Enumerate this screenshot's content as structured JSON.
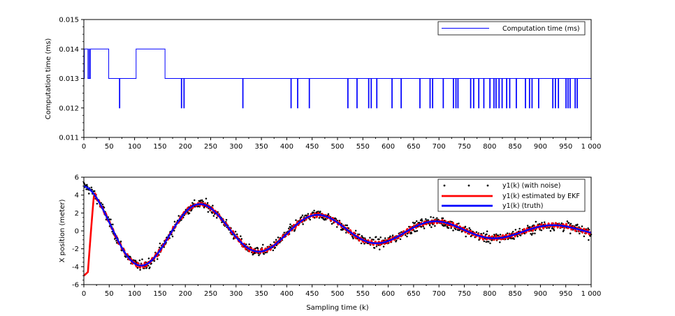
{
  "chart_data": [
    {
      "type": "line",
      "xlabel": "",
      "ylabel": "Computation time (ms)",
      "xlim": [
        0,
        1000
      ],
      "ylim": [
        0.011,
        0.015
      ],
      "xticks": [
        "0",
        "50",
        "100",
        "150",
        "200",
        "250",
        "300",
        "350",
        "400",
        "450",
        "500",
        "550",
        "600",
        "650",
        "700",
        "750",
        "800",
        "850",
        "900",
        "950",
        "1 000"
      ],
      "yticks": [
        "0.011",
        "0.012",
        "0.013",
        "0.014",
        "0.015"
      ],
      "grid": false,
      "legend_position": "top-right",
      "series": [
        {
          "name": "Computation time (ms)",
          "color": "#0000ff",
          "baseline": 0.013,
          "segments": [
            {
              "from": 0,
              "to": 1,
              "value": 0.013
            },
            {
              "from": 1,
              "to": 8,
              "value": 0.014
            },
            {
              "from": 8,
              "to": 10,
              "value": 0.013
            },
            {
              "from": 10,
              "to": 11,
              "value": 0.014
            },
            {
              "from": 11,
              "to": 13,
              "value": 0.013
            },
            {
              "from": 13,
              "to": 49,
              "value": 0.014
            },
            {
              "from": 49,
              "to": 103,
              "value": 0.013
            },
            {
              "from": 103,
              "to": 160,
              "value": 0.014
            }
          ],
          "dips": [
            70,
            192,
            197,
            313,
            408,
            421,
            444,
            520,
            538,
            561,
            566,
            577,
            607,
            625,
            662,
            682,
            687,
            708,
            728,
            733,
            737,
            762,
            768,
            778,
            788,
            800,
            808,
            812,
            818,
            824,
            833,
            839,
            852,
            870,
            878,
            883,
            896,
            924,
            929,
            935,
            950,
            954,
            958,
            968,
            972
          ]
        }
      ]
    },
    {
      "type": "line",
      "xlabel": "Sampling time (k)",
      "ylabel": "X position (meter)",
      "xlim": [
        0,
        1000
      ],
      "ylim": [
        -6,
        6
      ],
      "xticks": [
        "0",
        "50",
        "100",
        "150",
        "200",
        "250",
        "300",
        "350",
        "400",
        "450",
        "500",
        "550",
        "600",
        "650",
        "700",
        "750",
        "800",
        "850",
        "900",
        "950",
        "1 000"
      ],
      "yticks": [
        "-6",
        "-4",
        "-2",
        "0",
        "2",
        "4",
        "6"
      ],
      "grid": false,
      "legend_position": "top-right",
      "series": [
        {
          "name": "y1(k) (with noise)",
          "style": "markers",
          "color": "#000000"
        },
        {
          "name": "y1(k) estimated by EKF",
          "style": "line",
          "color": "#ff0000"
        },
        {
          "name": "y1(k) (truth)",
          "style": "line",
          "color": "#0000ff"
        }
      ],
      "truth_model": "y = 5 * exp(-k/450) * cos(2*pi*k/232)",
      "noise_std": 0.4,
      "ekf_start": -5,
      "ekf_converged_at": 20
    }
  ]
}
